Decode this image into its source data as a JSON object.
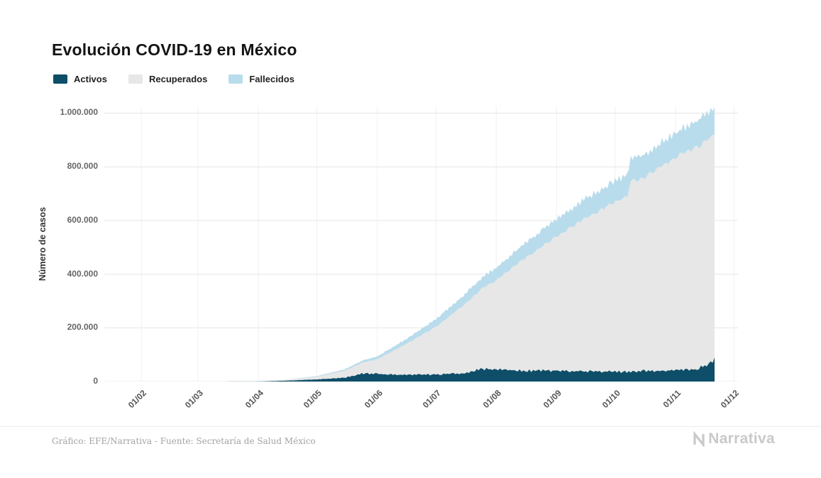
{
  "title": "Evolución COVID-19 en México",
  "legend": [
    {
      "label": "Activos",
      "color": "#0e4e68"
    },
    {
      "label": "Recuperados",
      "color": "#e7e7e7"
    },
    {
      "label": "Fallecidos",
      "color": "#b9dcec"
    }
  ],
  "footer": {
    "source": "Gráfico: EFE/Narrativa - Fuente: Secretaría de Salud México",
    "brand": "Narrativa"
  },
  "chart_data": {
    "type": "area",
    "stacked": true,
    "title": "Evolución COVID-19 en México",
    "xlabel": "",
    "ylabel": "Número de casos",
    "grid": true,
    "legend_position": "top-left",
    "ylim": [
      0,
      1025000
    ],
    "y_ticks": [
      0,
      200000,
      400000,
      600000,
      800000,
      1000000
    ],
    "y_tick_labels": [
      "0",
      "200.000",
      "400.000",
      "600.000",
      "800.000",
      "1.000.000"
    ],
    "x_tick_labels": [
      "01/02",
      "01/03",
      "01/04",
      "01/05",
      "01/06",
      "01/07",
      "01/08",
      "01/09",
      "01/10",
      "01/11",
      "01/12"
    ],
    "x_tick_days": [
      0,
      29,
      60,
      90,
      121,
      151,
      182,
      213,
      243,
      274,
      304
    ],
    "x_range_days": [
      -19,
      306
    ],
    "sample_days": [
      -19,
      0,
      14,
      29,
      43,
      60,
      74,
      90,
      104,
      114,
      121,
      135,
      151,
      165,
      175,
      182,
      196,
      213,
      227,
      243,
      249,
      251,
      257,
      274,
      285,
      294
    ],
    "series": [
      {
        "name": "Activos",
        "color": "#0e4e68",
        "values": [
          0,
          0,
          0,
          0,
          100,
          400,
          3000,
          8000,
          14000,
          30000,
          28000,
          24000,
          27000,
          30000,
          48000,
          44000,
          40000,
          41000,
          38000,
          37000,
          36000,
          37000,
          39000,
          42000,
          45000,
          80000
        ]
      },
      {
        "name": "Recuperados",
        "color": "#e7e7e7",
        "values": [
          0,
          0,
          0,
          5,
          150,
          1000,
          2800,
          10800,
          26200,
          42000,
          55400,
          112800,
          176300,
          253100,
          300000,
          333200,
          416100,
          499600,
          566800,
          633200,
          651000,
          711000,
          718300,
          795100,
          830000,
          839400
        ]
      },
      {
        "name": "Fallecidos",
        "color": "#b9dcec",
        "values": [
          0,
          0,
          0,
          0,
          2,
          50,
          650,
          1900,
          4800,
          8000,
          10000,
          18000,
          28500,
          36900,
          42000,
          46700,
          55300,
          65200,
          71700,
          78100,
          79800,
          80400,
          84400,
          91300,
          96000,
          100100
        ]
      }
    ]
  }
}
